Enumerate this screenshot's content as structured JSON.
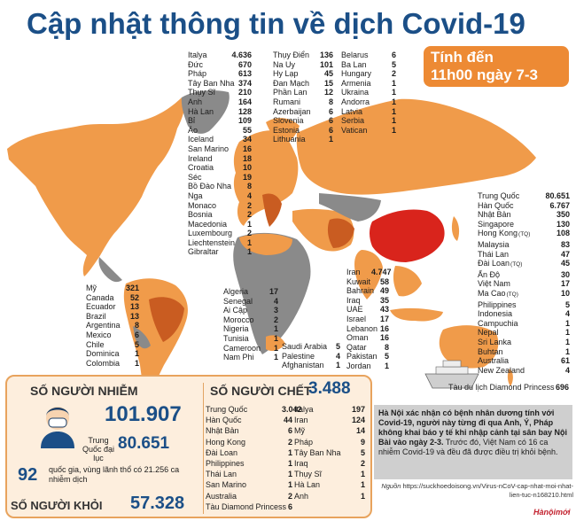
{
  "title": "Cập nhật thông tin về dịch Covid-19",
  "time_box": {
    "line1": "Tính đến",
    "line2": "11h00 ngày 7-3"
  },
  "colors": {
    "accent": "#ed8a34",
    "dark_orange": "#c95c21",
    "china": "#d9241c",
    "land": "#f09b4a",
    "gray": "#8a8a8a",
    "title": "#1b4f87"
  },
  "chart_data": {
    "type": "table",
    "europe": [
      [
        "Italya",
        "4.636"
      ],
      [
        "Đức",
        "670"
      ],
      [
        "Pháp",
        "613"
      ],
      [
        "Tây Ban Nha",
        "374"
      ],
      [
        "Thụy Sĩ",
        "210"
      ],
      [
        "Anh",
        "164"
      ],
      [
        "Hà Lan",
        "128"
      ],
      [
        "Bỉ",
        "109"
      ],
      [
        "Áo",
        "55"
      ],
      [
        "Iceland",
        "34"
      ],
      [
        "San Marino",
        "16"
      ],
      [
        "Ireland",
        "18"
      ],
      [
        "Croatia",
        "10"
      ],
      [
        "Séc",
        "19"
      ],
      [
        "Bồ Đào Nha",
        "8"
      ],
      [
        "Nga",
        "4"
      ],
      [
        "Monaco",
        "2"
      ],
      [
        "Bosnia",
        "2"
      ],
      [
        "Macedonia",
        "1"
      ],
      [
        "Luxembourg",
        "2"
      ],
      [
        "Liechtenstein",
        "1"
      ],
      [
        "Gibraltar",
        "1"
      ]
    ],
    "europe2": [
      [
        "Thụy Điển",
        "136"
      ],
      [
        "Na Uy",
        "101"
      ],
      [
        "Hy Lạp",
        "45"
      ],
      [
        "Đan Mạch",
        "15"
      ],
      [
        "Phần Lan",
        "12"
      ],
      [
        "Rumani",
        "8"
      ],
      [
        "Azerbaijan",
        "6"
      ],
      [
        "Slovenia",
        "6"
      ],
      [
        "Estonia",
        "6"
      ],
      [
        "Lithuania",
        "1"
      ]
    ],
    "europe3": [
      [
        "Belarus",
        "6"
      ],
      [
        "Ba Lan",
        "5"
      ],
      [
        "Hungary",
        "2"
      ],
      [
        "Armenia",
        "1"
      ],
      [
        "Ukraina",
        "1"
      ],
      [
        "Andorra",
        "1"
      ],
      [
        "Latvia",
        "1"
      ],
      [
        "Serbia",
        "1"
      ],
      [
        "Vatican",
        "1"
      ]
    ],
    "americas": [
      [
        "Mỹ",
        "321"
      ],
      [
        "Canada",
        "52"
      ],
      [
        "Ecuador",
        "13"
      ],
      [
        "Brazil",
        "13"
      ],
      [
        "Argentina",
        "8"
      ],
      [
        "Mexico",
        "6"
      ],
      [
        "Chile",
        "5"
      ],
      [
        "Dominica",
        "1"
      ],
      [
        "Colombia",
        "1"
      ]
    ],
    "africa": [
      [
        "Algeria",
        "17"
      ],
      [
        "Senegal",
        "4"
      ],
      [
        "Ai Cập",
        "3"
      ],
      [
        "Morocco",
        "2"
      ],
      [
        "Nigeria",
        "1"
      ],
      [
        "Tunisia",
        "1"
      ],
      [
        "Cameroon",
        "1"
      ],
      [
        "Nam Phi",
        "1"
      ]
    ],
    "mideast": [
      [
        "Saudi Arabia",
        "5"
      ],
      [
        "Palestine",
        "4"
      ],
      [
        "Afghanistan",
        "1"
      ]
    ],
    "asia_mid": [
      [
        "Iran",
        "4.747"
      ],
      [
        "Kuwait",
        "58"
      ],
      [
        "Bahrain",
        "49"
      ],
      [
        "Iraq",
        "35"
      ],
      [
        "UAE",
        "43"
      ],
      [
        "Israel",
        "17"
      ],
      [
        "Lebanon",
        "16"
      ],
      [
        "Oman",
        "16"
      ],
      [
        "Qatar",
        "8"
      ],
      [
        "Pakistan",
        "5"
      ],
      [
        "Jordan",
        "1"
      ]
    ],
    "asia_east": [
      [
        "Trung Quốc",
        "80.651",
        ""
      ],
      [
        "Hàn Quốc",
        "6.767",
        ""
      ],
      [
        "Nhật Bản",
        "350",
        ""
      ],
      [
        "Singapore",
        "130",
        ""
      ],
      [
        "Hong Kong",
        "108",
        "(TQ)"
      ],
      [
        "Malaysia",
        "83",
        ""
      ],
      [
        "Thái Lan",
        "47",
        ""
      ],
      [
        "Đài Loan",
        "45",
        "(TQ)"
      ],
      [
        "Ấn Độ",
        "30",
        ""
      ],
      [
        "Việt Nam",
        "17",
        ""
      ],
      [
        "Ma Cao",
        "10",
        "(TQ)"
      ],
      [
        "Philippines",
        "5",
        ""
      ],
      [
        "Indonesia",
        "4",
        ""
      ],
      [
        "Campuchia",
        "1",
        ""
      ],
      [
        "Nepal",
        "1",
        ""
      ],
      [
        "Sri Lanka",
        "1",
        ""
      ],
      [
        "Buhtan",
        "1",
        ""
      ],
      [
        "Australia",
        "61",
        ""
      ],
      [
        "New Zealand",
        "4",
        ""
      ]
    ],
    "ship": [
      "Tàu du lịch Diamond Princess",
      "696"
    ],
    "deaths_col1": [
      [
        "Trung Quốc",
        "3.042"
      ],
      [
        "Hàn Quốc",
        "44"
      ],
      [
        "Nhật Bản",
        "6"
      ],
      [
        "Hong Kong",
        "2"
      ],
      [
        "Đài Loan",
        "1"
      ],
      [
        "Philippines",
        "1"
      ],
      [
        "Thái Lan",
        "1"
      ],
      [
        "San Marino",
        "1"
      ],
      [
        "Australia",
        "2"
      ],
      [
        "Tàu Diamond Princess",
        "6"
      ]
    ],
    "deaths_col2": [
      [
        "Italya",
        "197"
      ],
      [
        "Iran",
        "124"
      ],
      [
        "Mỹ",
        "14"
      ],
      [
        "Pháp",
        "9"
      ],
      [
        "Tây Ban Nha",
        "5"
      ],
      [
        "Iraq",
        "2"
      ],
      [
        "Thụy Sĩ",
        "1"
      ],
      [
        "Hà Lan",
        "1"
      ],
      [
        "Anh",
        "1"
      ]
    ]
  },
  "stats": {
    "infected_label": "SỐ NGƯỜI NHIỄM",
    "infected_total": "101.907",
    "china_label": "Trung Quốc đại lục",
    "china_value": "80.651",
    "countries_count": "92",
    "countries_text": "quốc gia, vùng lãnh thổ có 21.256 ca nhiễm dịch",
    "recovered_label": "SỐ NGƯỜI KHỎI",
    "recovered_total": "57.328",
    "deaths_label": "SỐ NGƯỜI CHẾT",
    "deaths_total": "3.488"
  },
  "info": {
    "bold_text": "Hà Nội xác nhận có bệnh nhân dương tính với Covid-19, người này từng đi qua Anh, Ý, Pháp không khai báo y tế khi nhập cảnh tại sân bay Nội Bài vào ngày 2-3.",
    "text": "Trước đó, Việt Nam có 16 ca nhiễm Covid-19 và đều đã được điều trị khỏi bệnh."
  },
  "source": {
    "label": "Nguồn",
    "url": "https://suckhoedoisong.vn/Virus-nCoV-cap-nhat-moi-nhat-lien-tuc-n168210.html"
  },
  "logo": "Hànộimới"
}
